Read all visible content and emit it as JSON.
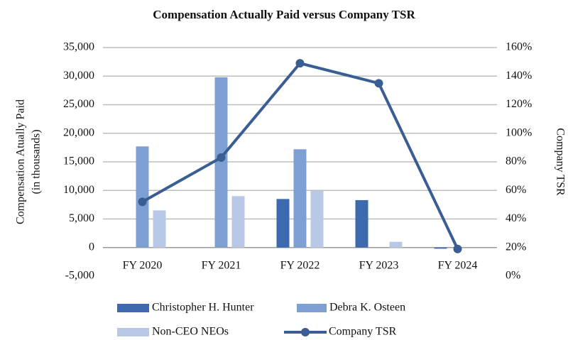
{
  "chart_data": {
    "type": "bar",
    "title": "Compensation Actually Paid versus Company TSR",
    "ylabel": [
      "Compensation Atually Paid",
      "(in thousands)"
    ],
    "y2label": "Company TSR",
    "categories": [
      "FY 2020",
      "FY 2021",
      "FY 2022",
      "FY 2023",
      "FY 2024"
    ],
    "series": [
      {
        "name": "Christopher H. Hunter",
        "color": "#3d6aae",
        "values": [
          null,
          null,
          8500,
          8300,
          -200
        ]
      },
      {
        "name": "Debra K. Osteen",
        "color": "#7d9fd2",
        "values": [
          17700,
          29800,
          17200,
          null,
          null
        ]
      },
      {
        "name": "Non-CEO NEOs",
        "color": "#b8c8e6",
        "values": [
          6500,
          9000,
          9900,
          1000,
          null
        ]
      },
      {
        "name": "Company TSR",
        "color": "#3a5d94",
        "type": "line",
        "axis": "y2",
        "values": [
          52,
          83,
          149,
          135,
          19
        ]
      }
    ],
    "ylim": [
      -5000,
      35000
    ],
    "yticks": [
      {
        "value": -5000,
        "label": "-5,000"
      },
      0,
      {
        "value": 5000,
        "label": "5,000"
      },
      {
        "value": 10000,
        "label": "10,000"
      },
      {
        "value": 15000,
        "label": "15,000"
      },
      {
        "value": 20000,
        "label": "20,000"
      },
      {
        "value": 25000,
        "label": "25,000"
      },
      {
        "value": 30000,
        "label": "30,000"
      },
      {
        "value": 35000,
        "label": "35,000"
      }
    ],
    "y2lim": [
      0,
      160
    ],
    "y2ticks": [
      {
        "value": 0,
        "label": "0%"
      },
      {
        "value": 20,
        "label": "20%"
      },
      {
        "value": 40,
        "label": "40%"
      },
      {
        "value": 60,
        "label": "60%"
      },
      {
        "value": 80,
        "label": "80%"
      },
      {
        "value": 100,
        "label": "100%"
      },
      {
        "value": 120,
        "label": "120%"
      },
      {
        "value": 140,
        "label": "140%"
      },
      {
        "value": 160,
        "label": "160%"
      }
    ],
    "grid": true
  }
}
